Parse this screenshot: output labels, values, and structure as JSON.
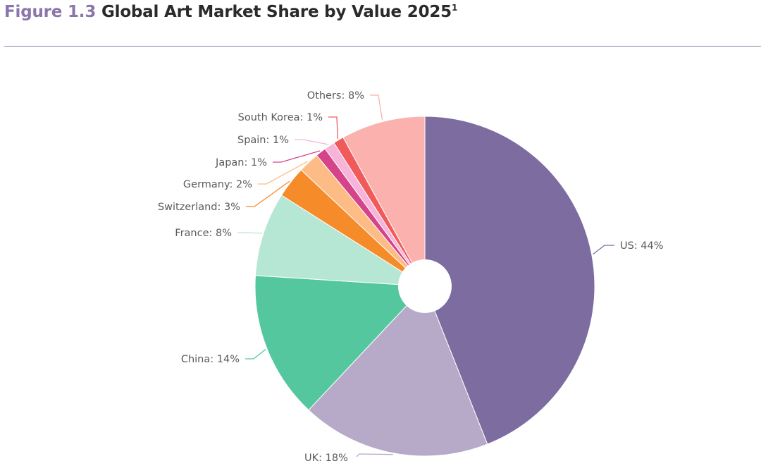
{
  "figure": {
    "prefix": "Figure 1.3",
    "title": "Global Art Market Share by Value 2025",
    "footnote": "1"
  },
  "chart_data": {
    "type": "pie",
    "title": "Global Art Market Share by Value 2025",
    "unit": "%",
    "slices": [
      {
        "label": "US",
        "value": 44,
        "display": "US: 44%",
        "color": "#7d6ca0"
      },
      {
        "label": "UK",
        "value": 18,
        "display": "UK: 18%",
        "color": "#b7a9c8"
      },
      {
        "label": "China",
        "value": 14,
        "display": "China: 14%",
        "color": "#55c79e"
      },
      {
        "label": "France",
        "value": 8,
        "display": "France: 8%",
        "color": "#b6e7d4"
      },
      {
        "label": "Switzerland",
        "value": 3,
        "display": "Switzerland: 3%",
        "color": "#f68b2a"
      },
      {
        "label": "Germany",
        "value": 2,
        "display": "Germany: 2%",
        "color": "#fdbc85"
      },
      {
        "label": "Japan",
        "value": 1,
        "display": "Japan: 1%",
        "color": "#d5438a"
      },
      {
        "label": "Spain",
        "value": 1,
        "display": "Spain: 1%",
        "color": "#f6b4d9"
      },
      {
        "label": "South Korea",
        "value": 1,
        "display": "South Korea: 1%",
        "color": "#f15a5a"
      },
      {
        "label": "Others",
        "value": 8,
        "display": "Others: 8%",
        "color": "#fbb1ae"
      }
    ]
  }
}
